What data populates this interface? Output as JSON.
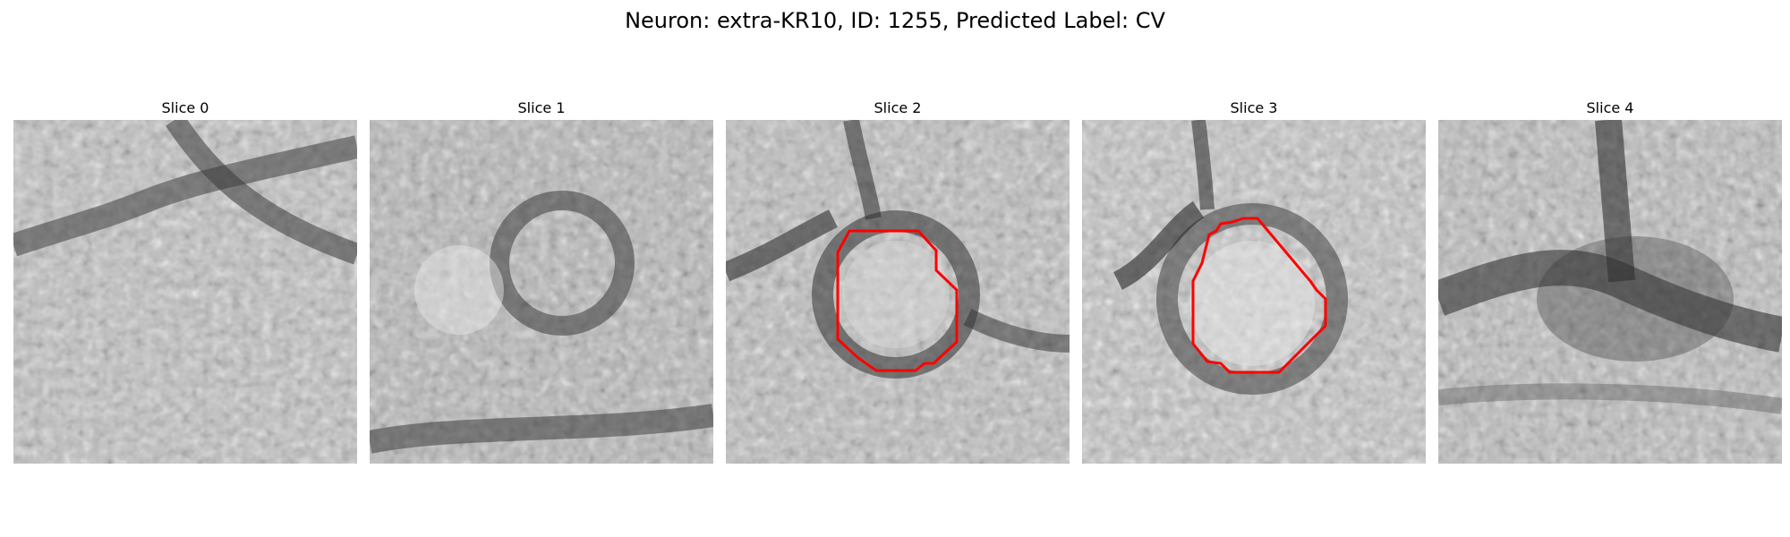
{
  "figure": {
    "title": "Neuron: extra-KR10, ID: 1255, Predicted Label: CV"
  },
  "panels": [
    {
      "title": "Slice 0"
    },
    {
      "title": "Slice 1"
    },
    {
      "title": "Slice 2"
    },
    {
      "title": "Slice 3"
    },
    {
      "title": "Slice 4"
    }
  ],
  "colors": {
    "contour": "#ff0000"
  }
}
